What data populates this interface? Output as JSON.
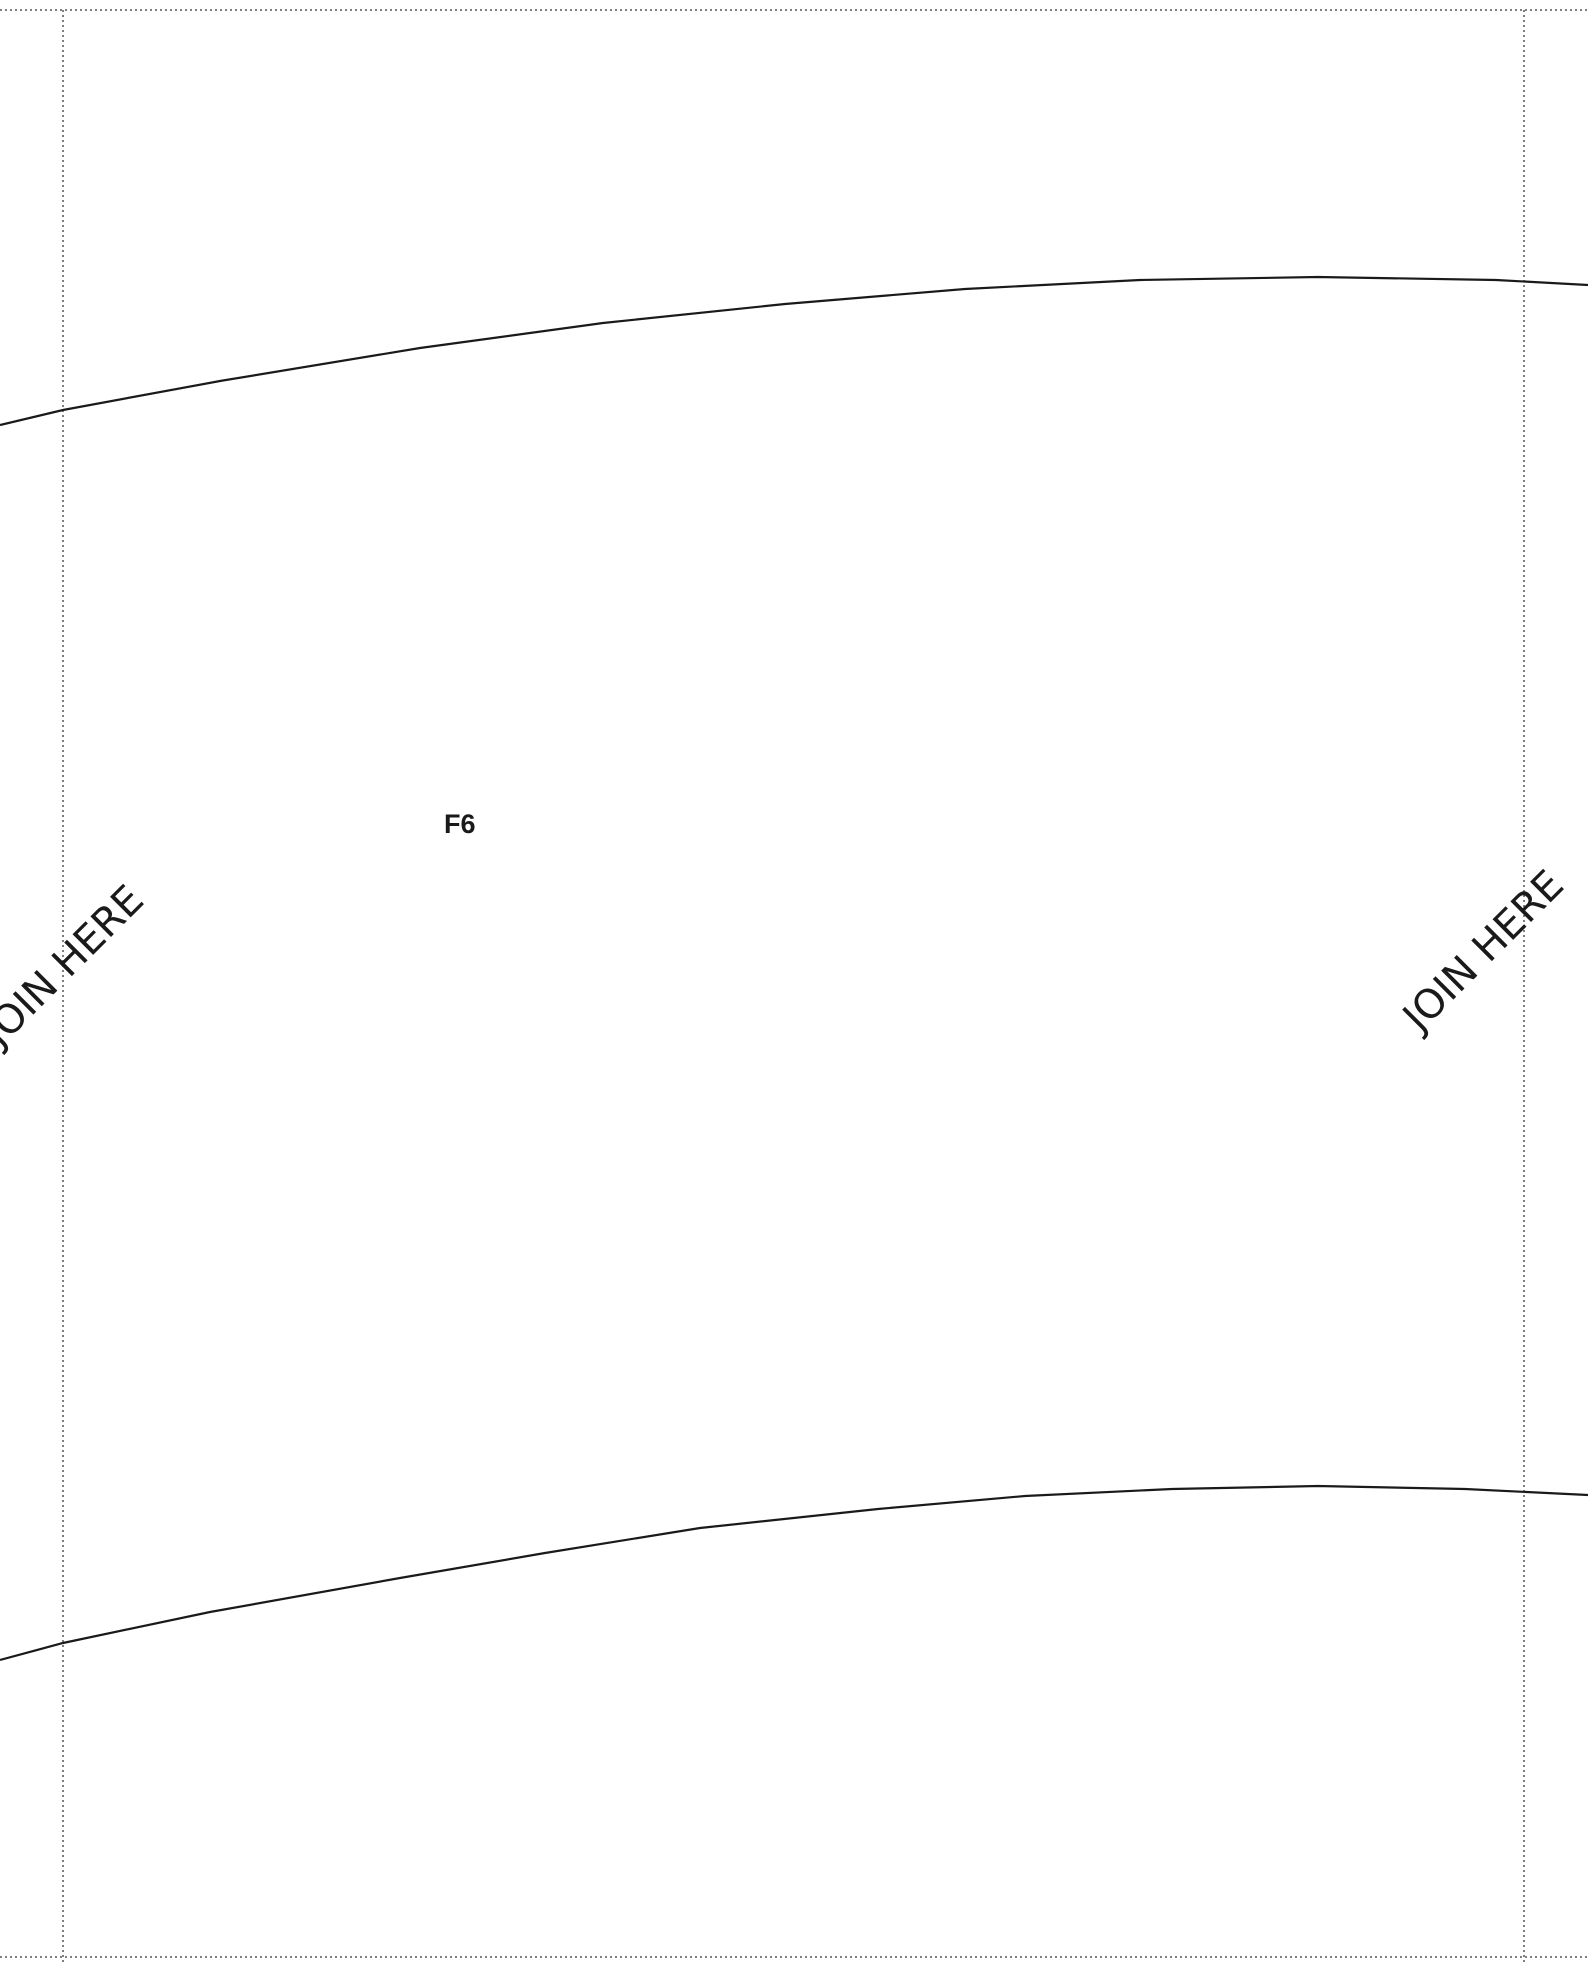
{
  "page": {
    "piece_label": "F6",
    "join_left": "JOIN HERE",
    "join_right": "JOIN HERE"
  }
}
